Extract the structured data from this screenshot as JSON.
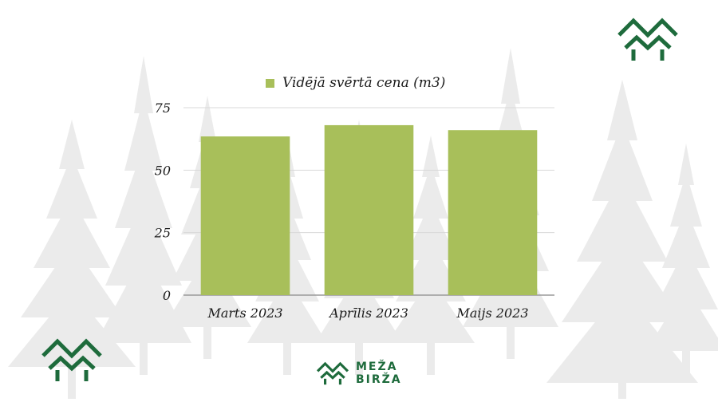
{
  "chart_data": {
    "type": "bar",
    "categories": [
      "Marts 2023",
      "Aprīlis 2023",
      "Maijs 2023"
    ],
    "series": [
      {
        "name": "Vidējā svērtā cena (m3)",
        "values": [
          63.5,
          68,
          66
        ],
        "color": "#a8bf5a"
      }
    ],
    "yticks": [
      "0",
      "25",
      "50",
      "75"
    ],
    "ylim": [
      0,
      75
    ],
    "grid": true,
    "legend_position": "top-center"
  },
  "brand": {
    "line1": "MEŽA",
    "line2": "BIRŽA",
    "color": "#1e6b3c"
  },
  "icons": {
    "logo": "forest-logo-icon",
    "background": "tree-silhouette-icon"
  }
}
